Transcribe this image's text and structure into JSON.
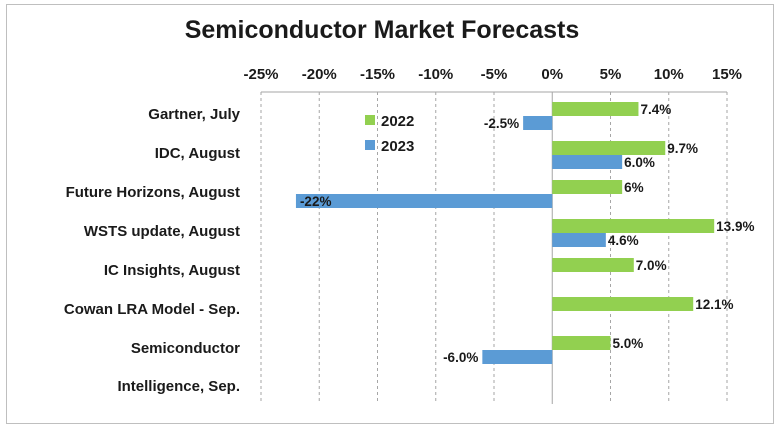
{
  "chart_data": {
    "type": "bar",
    "orientation": "horizontal",
    "title": "Semiconductor Market Forecasts",
    "xlim": [
      -25,
      15
    ],
    "x_ticks": [
      "-25%",
      "-20%",
      "-15%",
      "-10%",
      "-5%",
      "0%",
      "5%",
      "10%",
      "15%"
    ],
    "x_axis_position": "top",
    "grid": "vertical dashed",
    "legend_position": "top-center",
    "categories": [
      [
        "Gartner, July"
      ],
      [
        "IDC, August"
      ],
      [
        "Future Horizons, August"
      ],
      [
        "WSTS update, August"
      ],
      [
        "IC Insights, August"
      ],
      [
        "Cowan LRA Model - Sep."
      ],
      [
        "Semiconductor",
        "Intelligence, Sep."
      ]
    ],
    "series": [
      {
        "name": "2022",
        "color": "#92d050",
        "values": [
          7.4,
          9.7,
          6,
          13.9,
          7.0,
          12.1,
          5.0
        ],
        "labels": [
          "7.4%",
          "9.7%",
          "6%",
          "13.9%",
          "7.0%",
          "12.1%",
          "5.0%"
        ]
      },
      {
        "name": "2023",
        "color": "#5b9bd5",
        "values": [
          -2.5,
          6.0,
          -22,
          4.6,
          null,
          null,
          -6.0
        ],
        "labels": [
          "-2.5%",
          "6.0%",
          "-22%",
          "4.6%",
          null,
          null,
          "-6.0%"
        ]
      }
    ]
  }
}
